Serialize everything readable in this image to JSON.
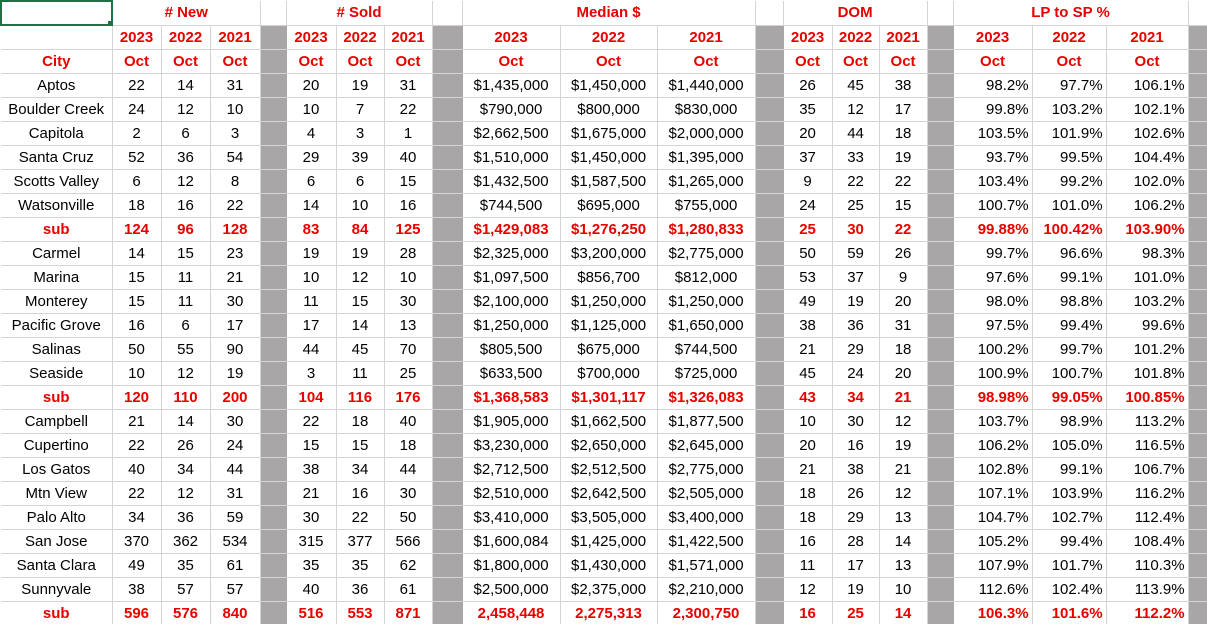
{
  "group_headers": [
    "# New",
    "# Sold",
    "Median $",
    "DOM",
    "LP to SP %"
  ],
  "years": [
    "2023",
    "2022",
    "2021"
  ],
  "month": "Oct",
  "city_header": "City",
  "rows": [
    {
      "city": "Aptos",
      "sub": false,
      "new": [
        "22",
        "14",
        "31"
      ],
      "sold": [
        "20",
        "19",
        "31"
      ],
      "median": [
        "$1,435,000",
        "$1,450,000",
        "$1,440,000"
      ],
      "dom": [
        "26",
        "45",
        "38"
      ],
      "lpsp": [
        "98.2%",
        "97.7%",
        "106.1%"
      ]
    },
    {
      "city": "Boulder Creek",
      "sub": false,
      "new": [
        "24",
        "12",
        "10"
      ],
      "sold": [
        "10",
        "7",
        "22"
      ],
      "median": [
        "$790,000",
        "$800,000",
        "$830,000"
      ],
      "dom": [
        "35",
        "12",
        "17"
      ],
      "lpsp": [
        "99.8%",
        "103.2%",
        "102.1%"
      ]
    },
    {
      "city": "Capitola",
      "sub": false,
      "new": [
        "2",
        "6",
        "3"
      ],
      "sold": [
        "4",
        "3",
        "1"
      ],
      "median": [
        "$2,662,500",
        "$1,675,000",
        "$2,000,000"
      ],
      "dom": [
        "20",
        "44",
        "18"
      ],
      "lpsp": [
        "103.5%",
        "101.9%",
        "102.6%"
      ]
    },
    {
      "city": "Santa Cruz",
      "sub": false,
      "new": [
        "52",
        "36",
        "54"
      ],
      "sold": [
        "29",
        "39",
        "40"
      ],
      "median": [
        "$1,510,000",
        "$1,450,000",
        "$1,395,000"
      ],
      "dom": [
        "37",
        "33",
        "19"
      ],
      "lpsp": [
        "93.7%",
        "99.5%",
        "104.4%"
      ]
    },
    {
      "city": "Scotts Valley",
      "sub": false,
      "new": [
        "6",
        "12",
        "8"
      ],
      "sold": [
        "6",
        "6",
        "15"
      ],
      "median": [
        "$1,432,500",
        "$1,587,500",
        "$1,265,000"
      ],
      "dom": [
        "9",
        "22",
        "22"
      ],
      "lpsp": [
        "103.4%",
        "99.2%",
        "102.0%"
      ]
    },
    {
      "city": "Watsonville",
      "sub": false,
      "new": [
        "18",
        "16",
        "22"
      ],
      "sold": [
        "14",
        "10",
        "16"
      ],
      "median": [
        "$744,500",
        "$695,000",
        "$755,000"
      ],
      "dom": [
        "24",
        "25",
        "15"
      ],
      "lpsp": [
        "100.7%",
        "101.0%",
        "106.2%"
      ]
    },
    {
      "city": "sub",
      "sub": true,
      "new": [
        "124",
        "96",
        "128"
      ],
      "sold": [
        "83",
        "84",
        "125"
      ],
      "median": [
        "$1,429,083",
        "$1,276,250",
        "$1,280,833"
      ],
      "dom": [
        "25",
        "30",
        "22"
      ],
      "lpsp": [
        "99.88%",
        "100.42%",
        "103.90%"
      ]
    },
    {
      "city": "Carmel",
      "sub": false,
      "new": [
        "14",
        "15",
        "23"
      ],
      "sold": [
        "19",
        "19",
        "28"
      ],
      "median": [
        "$2,325,000",
        "$3,200,000",
        "$2,775,000"
      ],
      "dom": [
        "50",
        "59",
        "26"
      ],
      "lpsp": [
        "99.7%",
        "96.6%",
        "98.3%"
      ]
    },
    {
      "city": "Marina",
      "sub": false,
      "new": [
        "15",
        "11",
        "21"
      ],
      "sold": [
        "10",
        "12",
        "10"
      ],
      "median": [
        "$1,097,500",
        "$856,700",
        "$812,000"
      ],
      "dom": [
        "53",
        "37",
        "9"
      ],
      "lpsp": [
        "97.6%",
        "99.1%",
        "101.0%"
      ]
    },
    {
      "city": "Monterey",
      "sub": false,
      "new": [
        "15",
        "11",
        "30"
      ],
      "sold": [
        "11",
        "15",
        "30"
      ],
      "median": [
        "$2,100,000",
        "$1,250,000",
        "$1,250,000"
      ],
      "dom": [
        "49",
        "19",
        "20"
      ],
      "lpsp": [
        "98.0%",
        "98.8%",
        "103.2%"
      ]
    },
    {
      "city": "Pacific Grove",
      "sub": false,
      "new": [
        "16",
        "6",
        "17"
      ],
      "sold": [
        "17",
        "14",
        "13"
      ],
      "median": [
        "$1,250,000",
        "$1,125,000",
        "$1,650,000"
      ],
      "dom": [
        "38",
        "36",
        "31"
      ],
      "lpsp": [
        "97.5%",
        "99.4%",
        "99.6%"
      ]
    },
    {
      "city": "Salinas",
      "sub": false,
      "new": [
        "50",
        "55",
        "90"
      ],
      "sold": [
        "44",
        "45",
        "70"
      ],
      "median": [
        "$805,500",
        "$675,000",
        "$744,500"
      ],
      "dom": [
        "21",
        "29",
        "18"
      ],
      "lpsp": [
        "100.2%",
        "99.7%",
        "101.2%"
      ]
    },
    {
      "city": "Seaside",
      "sub": false,
      "new": [
        "10",
        "12",
        "19"
      ],
      "sold": [
        "3",
        "11",
        "25"
      ],
      "median": [
        "$633,500",
        "$700,000",
        "$725,000"
      ],
      "dom": [
        "45",
        "24",
        "20"
      ],
      "lpsp": [
        "100.9%",
        "100.7%",
        "101.8%"
      ]
    },
    {
      "city": "sub",
      "sub": true,
      "new": [
        "120",
        "110",
        "200"
      ],
      "sold": [
        "104",
        "116",
        "176"
      ],
      "median": [
        "$1,368,583",
        "$1,301,117",
        "$1,326,083"
      ],
      "dom": [
        "43",
        "34",
        "21"
      ],
      "lpsp": [
        "98.98%",
        "99.05%",
        "100.85%"
      ]
    },
    {
      "city": "Campbell",
      "sub": false,
      "new": [
        "21",
        "14",
        "30"
      ],
      "sold": [
        "22",
        "18",
        "40"
      ],
      "median": [
        "$1,905,000",
        "$1,662,500",
        "$1,877,500"
      ],
      "dom": [
        "10",
        "30",
        "12"
      ],
      "lpsp": [
        "103.7%",
        "98.9%",
        "113.2%"
      ]
    },
    {
      "city": "Cupertino",
      "sub": false,
      "new": [
        "22",
        "26",
        "24"
      ],
      "sold": [
        "15",
        "15",
        "18"
      ],
      "median": [
        "$3,230,000",
        "$2,650,000",
        "$2,645,000"
      ],
      "dom": [
        "20",
        "16",
        "19"
      ],
      "lpsp": [
        "106.2%",
        "105.0%",
        "116.5%"
      ]
    },
    {
      "city": "Los Gatos",
      "sub": false,
      "new": [
        "40",
        "34",
        "44"
      ],
      "sold": [
        "38",
        "34",
        "44"
      ],
      "median": [
        "$2,712,500",
        "$2,512,500",
        "$2,775,000"
      ],
      "dom": [
        "21",
        "38",
        "21"
      ],
      "lpsp": [
        "102.8%",
        "99.1%",
        "106.7%"
      ]
    },
    {
      "city": "Mtn View",
      "sub": false,
      "new": [
        "22",
        "12",
        "31"
      ],
      "sold": [
        "21",
        "16",
        "30"
      ],
      "median": [
        "$2,510,000",
        "$2,642,500",
        "$2,505,000"
      ],
      "dom": [
        "18",
        "26",
        "12"
      ],
      "lpsp": [
        "107.1%",
        "103.9%",
        "116.2%"
      ]
    },
    {
      "city": "Palo Alto",
      "sub": false,
      "new": [
        "34",
        "36",
        "59"
      ],
      "sold": [
        "30",
        "22",
        "50"
      ],
      "median": [
        "$3,410,000",
        "$3,505,000",
        "$3,400,000"
      ],
      "dom": [
        "18",
        "29",
        "13"
      ],
      "lpsp": [
        "104.7%",
        "102.7%",
        "112.4%"
      ]
    },
    {
      "city": "San Jose",
      "sub": false,
      "new": [
        "370",
        "362",
        "534"
      ],
      "sold": [
        "315",
        "377",
        "566"
      ],
      "median": [
        "$1,600,084",
        "$1,425,000",
        "$1,422,500"
      ],
      "dom": [
        "16",
        "28",
        "14"
      ],
      "lpsp": [
        "105.2%",
        "99.4%",
        "108.4%"
      ]
    },
    {
      "city": "Santa Clara",
      "sub": false,
      "new": [
        "49",
        "35",
        "61"
      ],
      "sold": [
        "35",
        "35",
        "62"
      ],
      "median": [
        "$1,800,000",
        "$1,430,000",
        "$1,571,000"
      ],
      "dom": [
        "11",
        "17",
        "13"
      ],
      "lpsp": [
        "107.9%",
        "101.7%",
        "110.3%"
      ]
    },
    {
      "city": "Sunnyvale",
      "sub": false,
      "new": [
        "38",
        "57",
        "57"
      ],
      "sold": [
        "40",
        "36",
        "61"
      ],
      "median": [
        "$2,500,000",
        "$2,375,000",
        "$2,210,000"
      ],
      "dom": [
        "12",
        "19",
        "10"
      ],
      "lpsp": [
        "112.6%",
        "102.4%",
        "113.9%"
      ]
    },
    {
      "city": "sub",
      "sub": true,
      "new": [
        "596",
        "576",
        "840"
      ],
      "sold": [
        "516",
        "553",
        "871"
      ],
      "median": [
        "2,458,448",
        "2,275,313",
        "2,300,750"
      ],
      "dom": [
        "16",
        "25",
        "14"
      ],
      "lpsp": [
        "106.3%",
        "101.6%",
        "112.2%"
      ]
    }
  ]
}
